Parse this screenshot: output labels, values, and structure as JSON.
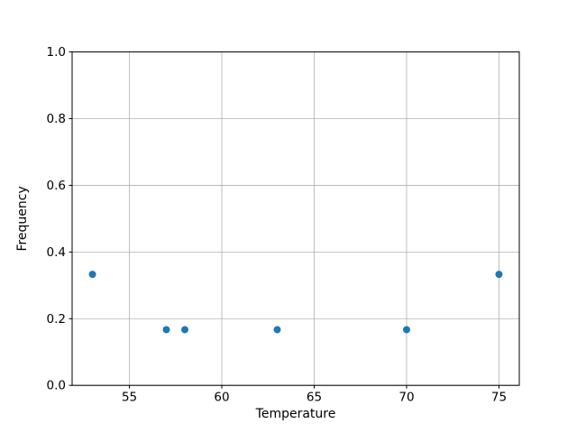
{
  "figure": {
    "background": "#ffffff"
  },
  "chart_data": {
    "type": "scatter",
    "title": "",
    "xlabel": "Temperature",
    "ylabel": "Frequency",
    "x": [
      53,
      57,
      58,
      63,
      70,
      75
    ],
    "y": [
      0.333,
      0.167,
      0.167,
      0.167,
      0.167,
      0.333
    ],
    "xlim": [
      51.9,
      76.1
    ],
    "ylim": [
      0.0,
      1.0
    ],
    "xticks": [
      55,
      60,
      65,
      70,
      75
    ],
    "xtick_labels": [
      "55",
      "60",
      "65",
      "70",
      "75"
    ],
    "yticks": [
      0.0,
      0.2,
      0.4,
      0.6,
      0.8,
      1.0
    ],
    "ytick_labels": [
      "0.0",
      "0.2",
      "0.4",
      "0.6",
      "0.8",
      "1.0"
    ],
    "grid": true,
    "legend": null,
    "colors": {
      "marker": "#1f77b4",
      "grid": "#b0b0b0",
      "spine": "#000000",
      "text": "#000000"
    }
  }
}
